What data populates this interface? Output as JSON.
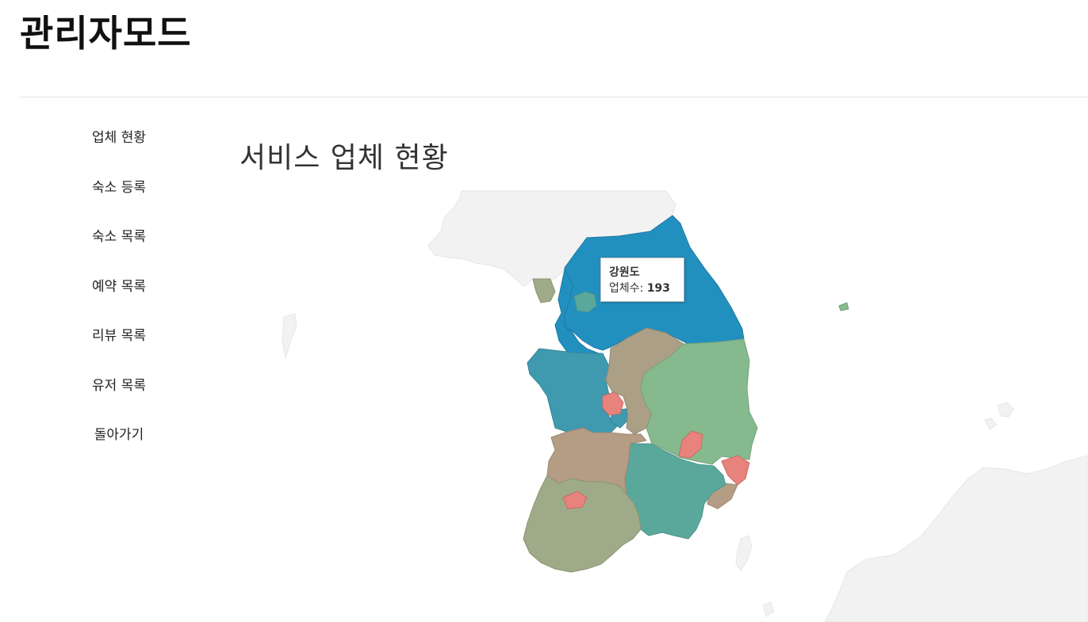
{
  "header": {
    "title": "관리자모드"
  },
  "sidebar": {
    "items": [
      {
        "label": "업체 현황"
      },
      {
        "label": "숙소 등록"
      },
      {
        "label": "숙소 목록"
      },
      {
        "label": "예약 목록"
      },
      {
        "label": "리뷰 목록"
      },
      {
        "label": "유저 목록"
      },
      {
        "label": "돌아가기"
      }
    ]
  },
  "main": {
    "title": "서비스 업체 현황"
  },
  "map": {
    "colors": {
      "background_land": "#f2f2f2",
      "blue_dark": "#2290bf",
      "blue_teal": "#3f9aaf",
      "teal": "#5aa89c",
      "green": "#86b98e",
      "olive": "#9faa88",
      "tan": "#b59c85",
      "brown_tan": "#ab9f86",
      "salmon": "#e8827c"
    },
    "tooltip": {
      "region": "강원도",
      "label": "업체수: ",
      "value": "193"
    }
  }
}
